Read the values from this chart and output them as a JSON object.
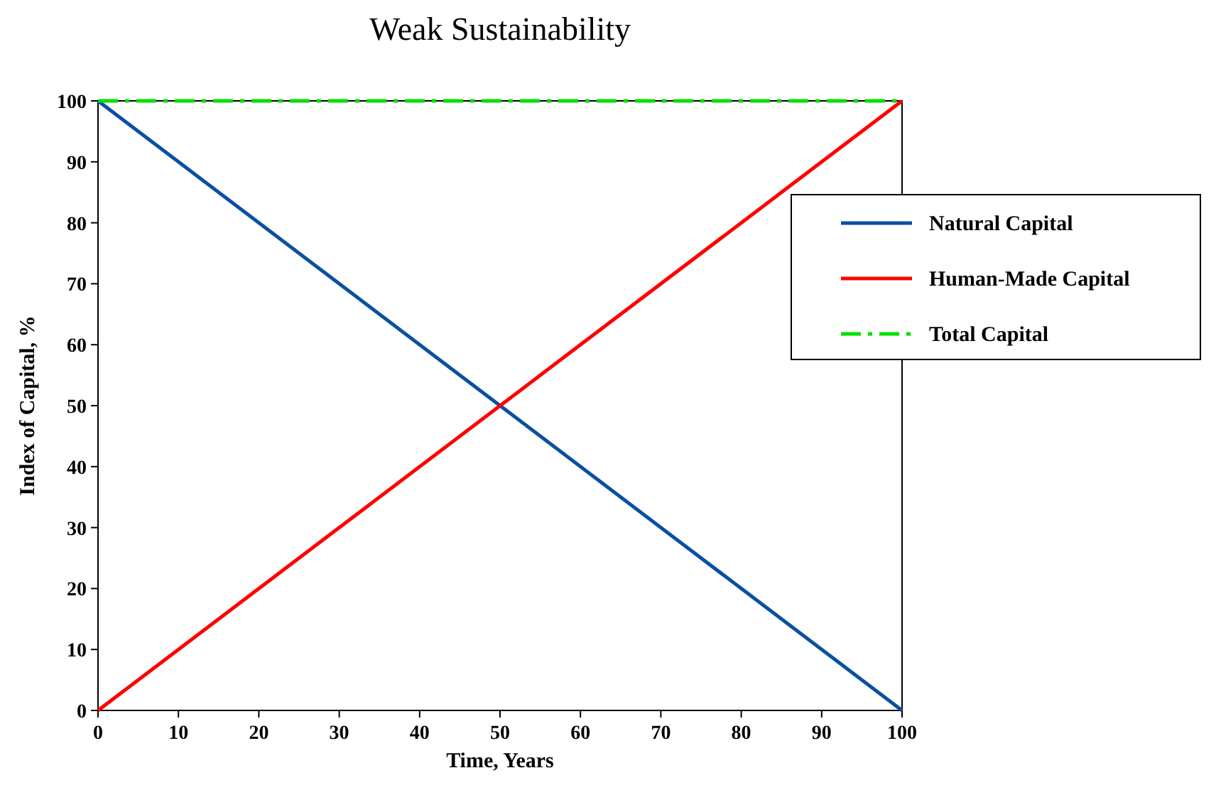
{
  "chart_data": {
    "type": "line",
    "title": "Weak Sustainability",
    "xlabel": "Time, Years",
    "ylabel": "Index of Capital, %",
    "x": [
      0,
      100
    ],
    "series": [
      {
        "name": "Natural Capital",
        "color": "#0a50a1",
        "values": [
          100,
          0
        ]
      },
      {
        "name": "Human-Made Capital",
        "color": "#ff0000",
        "values": [
          0,
          100
        ]
      },
      {
        "name": "Total Capital",
        "color": "#00e000",
        "values": [
          100,
          100
        ],
        "line_style": "dashed"
      }
    ],
    "xlim": [
      0,
      100
    ],
    "xticks": [
      0,
      10,
      20,
      30,
      40,
      50,
      60,
      70,
      80,
      90,
      100
    ],
    "ylim": [
      0,
      100
    ],
    "yticks": [
      0,
      10,
      20,
      30,
      40,
      50,
      60,
      70,
      80,
      90,
      100
    ],
    "grid": false,
    "legend": "right",
    "marker": "none",
    "line_style": "solid"
  }
}
